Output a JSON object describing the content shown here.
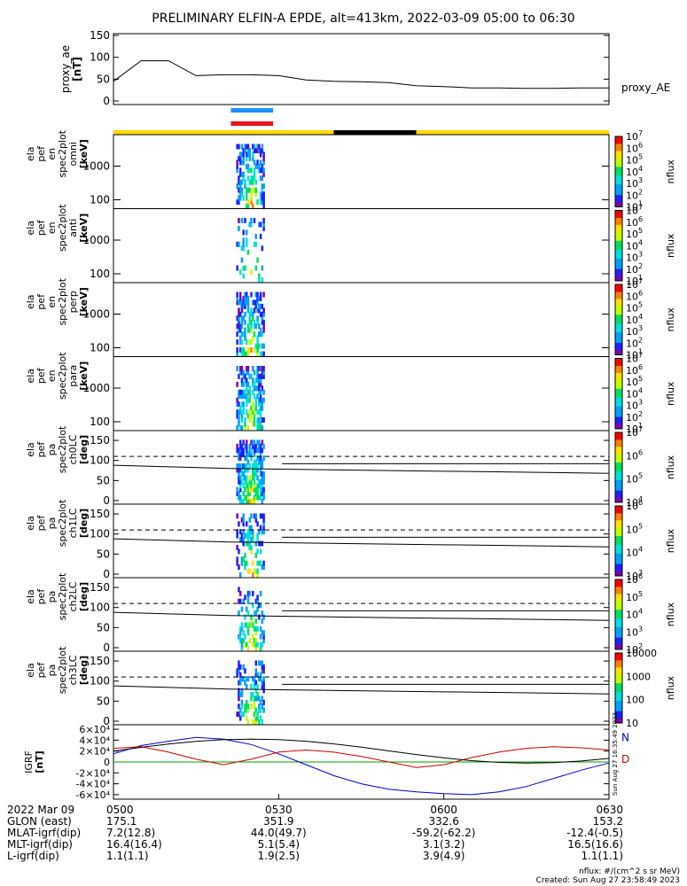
{
  "title": "PRELIMINARY ELFIN-A EPDE, alt=413km, 2022-03-09 05:00 to 06:30",
  "colors": {
    "proxy_ae_line": "#000000",
    "bar_blue": "#1e90ff",
    "bar_red": "#e8141e",
    "orbit_yellow": "#ffd700",
    "orbit_black": "#000000",
    "igrf_n": "#0000d0",
    "igrf_d": "#d00000",
    "igrf_black": "#000000",
    "igrf_green": "#00a000",
    "igrf_lime": "#60d000"
  },
  "proxy_panel": {
    "ylabel": "proxy_ae\n[nT]",
    "legend": "proxy_AE",
    "ylim": [
      0,
      150
    ],
    "yticks": [
      "0",
      "50",
      "100",
      "150"
    ]
  },
  "orbit_bar": [
    {
      "from": "05:00",
      "to": "05:40",
      "color": "yellow"
    },
    {
      "from": "05:40",
      "to": "05:55",
      "color": "black"
    },
    {
      "from": "05:55",
      "to": "06:30",
      "color": "yellow"
    }
  ],
  "energy_panels": [
    {
      "ylabel": [
        "ela",
        "pef",
        "en",
        "spec2plot",
        "omni",
        "[keV]"
      ],
      "yticks": [
        "100",
        "1000"
      ],
      "cbar_label": "nflux",
      "cbar_ticks": [
        "10",
        "10",
        "10",
        "10",
        "10",
        "10",
        "10"
      ],
      "cbar_exps": [
        "1",
        "2",
        "3",
        "4",
        "5",
        "6",
        "7"
      ]
    },
    {
      "ylabel": [
        "ela",
        "pef",
        "en",
        "spec2plot",
        "anti",
        "[keV]"
      ],
      "yticks": [
        "100",
        "1000"
      ],
      "cbar_label": "nflux",
      "cbar_ticks": [
        "10",
        "10",
        "10",
        "10",
        "10",
        "10",
        "10"
      ],
      "cbar_exps": [
        "1",
        "2",
        "3",
        "4",
        "5",
        "6",
        "7"
      ]
    },
    {
      "ylabel": [
        "ela",
        "pef",
        "en",
        "spec2plot",
        "perp",
        "[keV]"
      ],
      "yticks": [
        "100",
        "1000"
      ],
      "cbar_label": "nflux",
      "cbar_ticks": [
        "10",
        "10",
        "10",
        "10",
        "10",
        "10",
        "10"
      ],
      "cbar_exps": [
        "1",
        "2",
        "3",
        "4",
        "5",
        "6",
        "7"
      ]
    },
    {
      "ylabel": [
        "ela",
        "pef",
        "en",
        "spec2plot",
        "para",
        "[keV]"
      ],
      "yticks": [
        "100",
        "1000"
      ],
      "cbar_label": "nflux",
      "cbar_ticks": [
        "10",
        "10",
        "10",
        "10",
        "10",
        "10",
        "10"
      ],
      "cbar_exps": [
        "1",
        "2",
        "3",
        "4",
        "5",
        "6",
        "7"
      ]
    }
  ],
  "pa_panels": [
    {
      "ylabel": [
        "ela",
        "pef",
        "pa",
        "spec2plot",
        "ch0LC",
        "[deg]"
      ],
      "yticks": [
        "0",
        "50",
        "100",
        "150"
      ],
      "cbar_label": "nflux",
      "cbar_ticks": [
        "10",
        "10",
        "10",
        "10"
      ],
      "cbar_exps": [
        "4",
        "5",
        "6",
        "7"
      ]
    },
    {
      "ylabel": [
        "ela",
        "pef",
        "pa",
        "spec2plot",
        "ch1LC",
        "[deg]"
      ],
      "yticks": [
        "0",
        "50",
        "100",
        "150"
      ],
      "cbar_label": "nflux",
      "cbar_ticks": [
        "10",
        "10",
        "10",
        "10"
      ],
      "cbar_exps": [
        "3",
        "4",
        "5",
        "6"
      ]
    },
    {
      "ylabel": [
        "ela",
        "pef",
        "pa",
        "spec2plot",
        "ch2LC",
        "[deg]"
      ],
      "yticks": [
        "0",
        "50",
        "100",
        "150"
      ],
      "cbar_label": "nflux",
      "cbar_ticks": [
        "10",
        "10",
        "10",
        "10",
        "10"
      ],
      "cbar_exps": [
        "2",
        "3",
        "4",
        "5",
        "6"
      ]
    },
    {
      "ylabel": [
        "ela",
        "pef",
        "pa",
        "spec2plot",
        "ch3LC",
        "[deg]"
      ],
      "yticks": [
        "0",
        "50",
        "100",
        "150"
      ],
      "cbar_label": "nflux",
      "cbar_ticks": [
        "10",
        "100",
        "1000",
        "10000"
      ],
      "cbar_exps": [
        "",
        "",
        "",
        ""
      ]
    }
  ],
  "igrf_panel": {
    "ylabel": "IGRF\n[nT]",
    "yticks": [
      "-6×10⁴",
      "-4×10⁴",
      "-2×10⁴",
      "0",
      "2×10⁴",
      "4×10⁴",
      "6×10⁴"
    ],
    "legend": [
      "N",
      "D"
    ],
    "stamp": "Sun Aug 27 16:35:49 2023"
  },
  "footer": {
    "labels": [
      "2022 Mar 09",
      "GLON (east)",
      "MLAT-igrf(dip)",
      "MLT-igrf(dip)",
      "L-igrf(dip)"
    ],
    "columns": [
      {
        "time": "0500",
        "glon": "175.1",
        "mlat": "7.2(12.8)",
        "mlt": "16.4(16.4)",
        "l": "1.1(1.1)"
      },
      {
        "time": "0530",
        "glon": "351.9",
        "mlat": "44.0(49.7)",
        "mlt": "5.1(5.4)",
        "l": "1.9(2.5)"
      },
      {
        "time": "0600",
        "glon": "332.6",
        "mlat": "-59.2(-62.2)",
        "mlt": "3.1(3.2)",
        "l": "3.9(4.9)"
      },
      {
        "time": "0630",
        "glon": "153.2",
        "mlat": "-12.4(-0.5)",
        "mlt": "16.5(16.6)",
        "l": "1.1(1.1)"
      }
    ],
    "units_note": "nflux: #/(cm^2 s sr MeV)",
    "created": "Created: Sun Aug 27 23:58:49 2023"
  },
  "chart_data": {
    "type": "line",
    "x": [
      "05:00",
      "05:05",
      "05:10",
      "05:15",
      "05:20",
      "05:25",
      "05:30",
      "05:35",
      "05:40",
      "05:45",
      "05:50",
      "05:55",
      "06:00",
      "06:05",
      "06:10",
      "06:15",
      "06:20",
      "06:25",
      "06:30"
    ],
    "series": [
      {
        "name": "proxy_AE",
        "values": [
          45,
          92,
          92,
          58,
          60,
          60,
          58,
          48,
          45,
          44,
          42,
          35,
          33,
          30,
          30,
          29,
          29,
          30,
          30
        ]
      }
    ],
    "ylim": [
      0,
      150
    ],
    "spectrogram_time_range": [
      "05:21",
      "05:29"
    ],
    "igrf_series": [
      {
        "name": "N",
        "values": [
          15000,
          30000,
          38000,
          45000,
          42000,
          32000,
          15000,
          -5000,
          -25000,
          -40000,
          -50000,
          -55000,
          -58000,
          -60000,
          -55000,
          -45000,
          -30000,
          -15000,
          -2000
        ]
      },
      {
        "name": "D",
        "values": [
          25000,
          28000,
          18000,
          5000,
          -5000,
          5000,
          18000,
          22000,
          18000,
          10000,
          0,
          -10000,
          -5000,
          8000,
          18000,
          25000,
          28000,
          26000,
          22000
        ]
      }
    ]
  }
}
